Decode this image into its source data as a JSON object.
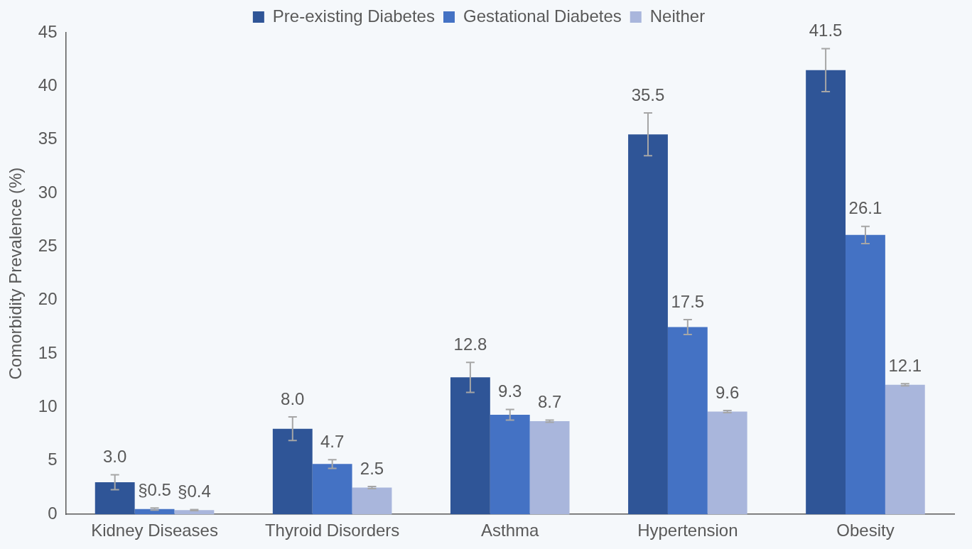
{
  "chart_data": {
    "type": "bar",
    "ylabel": "Comorbidity Prevalence (%)",
    "categories": [
      "Kidney Diseases",
      "Thyroid Disorders",
      "Asthma",
      "Hypertension",
      "Obesity"
    ],
    "ylim": [
      0,
      45
    ],
    "yticks": [
      0,
      5,
      10,
      15,
      20,
      25,
      30,
      35,
      40,
      45
    ],
    "grid": false,
    "legend": "top",
    "series": [
      {
        "name": "Pre-existing Diabetes",
        "color": "#2f5597",
        "values": [
          3.0,
          8.0,
          12.8,
          35.5,
          41.5
        ],
        "errors": [
          0.7,
          1.1,
          1.4,
          2.0,
          2.0
        ],
        "value_labels": [
          "3.0",
          "8.0",
          "12.8",
          "35.5",
          "41.5"
        ]
      },
      {
        "name": "Gestational Diabetes",
        "color": "#4472c4",
        "values": [
          0.5,
          4.7,
          9.3,
          17.5,
          26.1
        ],
        "errors": [
          0.1,
          0.4,
          0.5,
          0.7,
          0.8
        ],
        "value_labels": [
          "§0.5",
          "4.7",
          "9.3",
          "17.5",
          "26.1"
        ]
      },
      {
        "name": "Neither",
        "color": "#a9b6dc",
        "values": [
          0.4,
          2.5,
          8.7,
          9.6,
          12.1
        ],
        "errors": [
          0.05,
          0.1,
          0.1,
          0.1,
          0.1
        ],
        "value_labels": [
          "§0.4",
          "2.5",
          "8.7",
          "9.6",
          "12.1"
        ]
      }
    ]
  }
}
